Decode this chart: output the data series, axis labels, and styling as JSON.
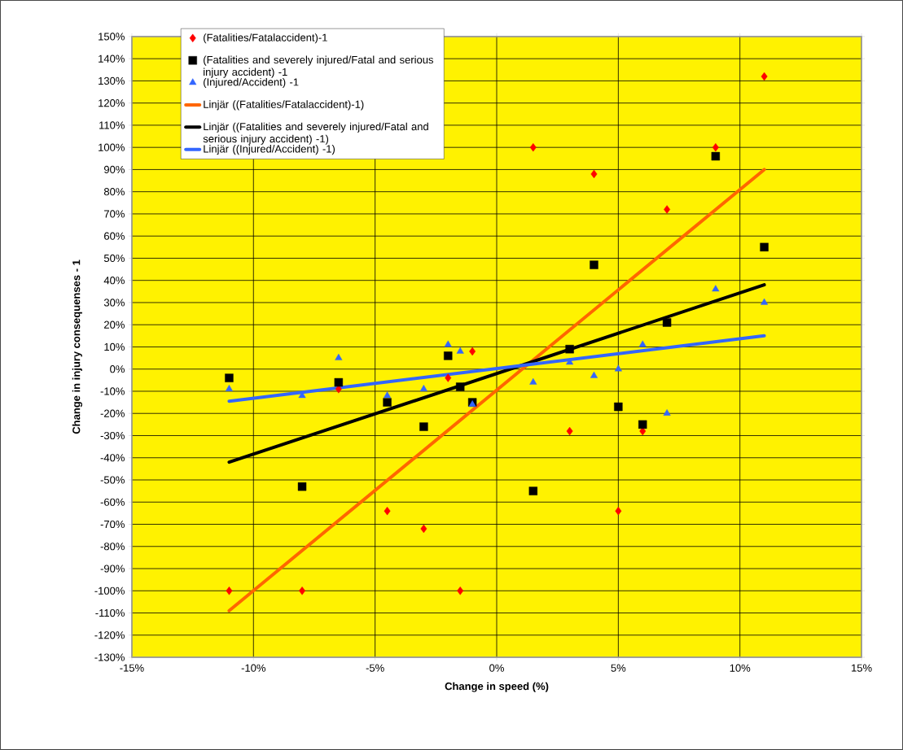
{
  "chart_data": {
    "type": "scatter",
    "xlabel": "Change in speed (%)",
    "ylabel": "Change in injury consequenses - 1",
    "xlim": [
      -15,
      15
    ],
    "xticks": [
      {
        "value": -15,
        "label": "-15%"
      },
      {
        "value": -10,
        "label": "-10%"
      },
      {
        "value": -5,
        "label": "-5%"
      },
      {
        "value": 0,
        "label": "0%"
      },
      {
        "value": 5,
        "label": "5%"
      },
      {
        "value": 10,
        "label": "10%"
      },
      {
        "value": 15,
        "label": "15%"
      }
    ],
    "ylim": [
      -130,
      150
    ],
    "yticks": [
      {
        "value": -130,
        "label": "-130%"
      },
      {
        "value": -120,
        "label": "-120%"
      },
      {
        "value": -110,
        "label": "-110%"
      },
      {
        "value": -100,
        "label": "-100%"
      },
      {
        "value": -90,
        "label": "-90%"
      },
      {
        "value": -80,
        "label": "-80%"
      },
      {
        "value": -70,
        "label": "-70%"
      },
      {
        "value": -60,
        "label": "-60%"
      },
      {
        "value": -50,
        "label": "-50%"
      },
      {
        "value": -40,
        "label": "-40%"
      },
      {
        "value": -30,
        "label": "-30%"
      },
      {
        "value": -20,
        "label": "-20%"
      },
      {
        "value": -10,
        "label": "-10%"
      },
      {
        "value": 0,
        "label": "0%"
      },
      {
        "value": 10,
        "label": "10%"
      },
      {
        "value": 20,
        "label": "20%"
      },
      {
        "value": 30,
        "label": "30%"
      },
      {
        "value": 40,
        "label": "40%"
      },
      {
        "value": 50,
        "label": "50%"
      },
      {
        "value": 60,
        "label": "60%"
      },
      {
        "value": 70,
        "label": "70%"
      },
      {
        "value": 80,
        "label": "80%"
      },
      {
        "value": 90,
        "label": "90%"
      },
      {
        "value": 100,
        "label": "100%"
      },
      {
        "value": 110,
        "label": "110%"
      },
      {
        "value": 120,
        "label": "120%"
      },
      {
        "value": 130,
        "label": "130%"
      },
      {
        "value": 140,
        "label": "140%"
      },
      {
        "value": 150,
        "label": "150%"
      }
    ],
    "grid": true,
    "legend": "top left",
    "series": [
      {
        "name": "(Fatalities/Fatalaccident)-1",
        "marker": "diamond",
        "color": "#ff0000",
        "x": [
          -11,
          -8,
          -6.5,
          -4.5,
          -3,
          -2,
          -1.5,
          -1,
          1.5,
          3,
          4,
          5,
          6,
          7,
          9,
          11
        ],
        "values": [
          -100,
          -100,
          -9,
          -64,
          -72,
          -4,
          -100,
          8,
          100,
          -28,
          88,
          -64,
          -28,
          72,
          100,
          132
        ]
      },
      {
        "name": "(Fatalities and severely injured/Fatal and serious injury accident) -1",
        "marker": "square",
        "color": "#000000",
        "x": [
          -11,
          -8,
          -6.5,
          -4.5,
          -3,
          -2,
          -1.5,
          -1,
          1.5,
          3,
          4,
          5,
          6,
          7,
          9,
          11
        ],
        "values": [
          -4,
          -53,
          -6,
          -15,
          -26,
          6,
          -8,
          -15,
          -55,
          9,
          47,
          -17,
          -25,
          21,
          96,
          55
        ]
      },
      {
        "name": "(Injured/Accident) -1",
        "marker": "triangle",
        "color": "#3366ff",
        "x": [
          -11,
          -8,
          -6.5,
          -4.5,
          -3,
          -2,
          -1.5,
          -1,
          1.5,
          3,
          4,
          5,
          6,
          7,
          9,
          11
        ],
        "values": [
          -9,
          -12,
          5,
          -12,
          -9,
          11,
          8,
          -16,
          -6,
          3,
          -3,
          0,
          11,
          -20,
          36,
          30
        ]
      },
      {
        "name": "Linjär ((Fatalities/Fatalaccident)-1)",
        "type": "line",
        "marker": "none",
        "line_style": "solid",
        "color": "#ff6600",
        "x": [
          -11,
          11
        ],
        "values": [
          -109,
          90
        ]
      },
      {
        "name": "Linjär ((Fatalities and severely injured/Fatal and serious injury accident) -1)",
        "type": "line",
        "marker": "none",
        "line_style": "solid",
        "color": "#000000",
        "x": [
          -11,
          11
        ],
        "values": [
          -42,
          38
        ]
      },
      {
        "name": "Linjär ((Injured/Accident) -1)",
        "type": "line",
        "marker": "none",
        "line_style": "solid",
        "color": "#3366ff",
        "x": [
          -11,
          11
        ],
        "values": [
          -14.5,
          15
        ]
      }
    ]
  }
}
